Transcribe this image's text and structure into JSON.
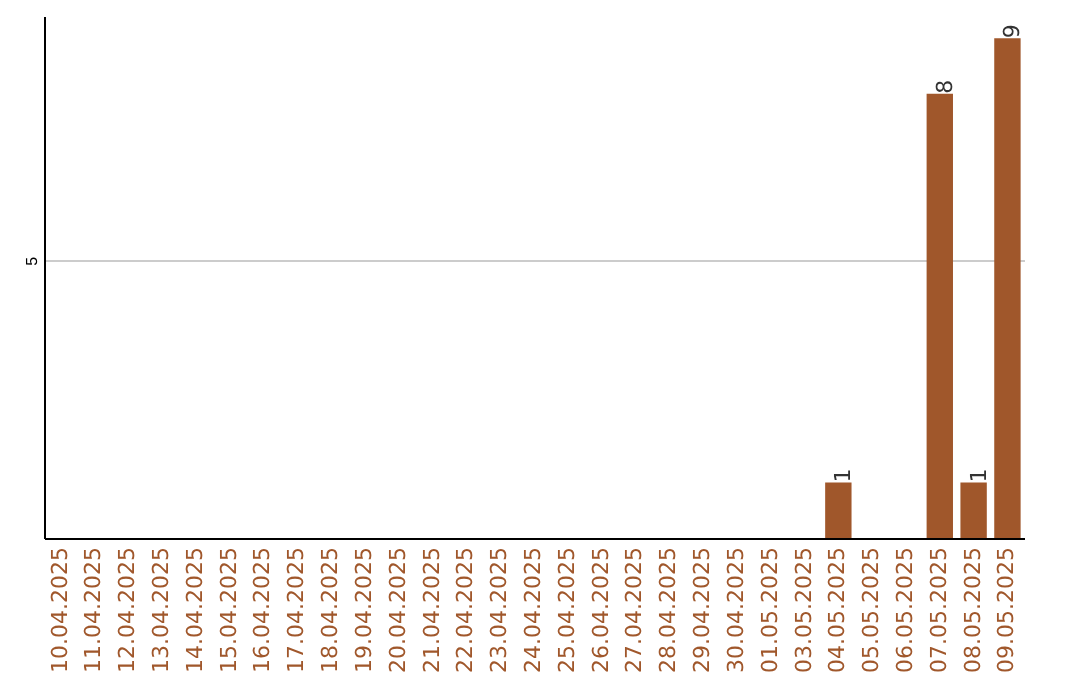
{
  "chart_data": {
    "type": "bar",
    "categories": [
      "10.04.2025",
      "11.04.2025",
      "12.04.2025",
      "13.04.2025",
      "14.04.2025",
      "15.04.2025",
      "16.04.2025",
      "17.04.2025",
      "18.04.2025",
      "19.04.2025",
      "20.04.2025",
      "21.04.2025",
      "22.04.2025",
      "23.04.2025",
      "24.04.2025",
      "25.04.2025",
      "26.04.2025",
      "27.04.2025",
      "28.04.2025",
      "29.04.2025",
      "30.04.2025",
      "01.05.2025",
      "03.05.2025",
      "04.05.2025",
      "05.05.2025",
      "06.05.2025",
      "07.05.2025",
      "08.05.2025",
      "09.05.2025"
    ],
    "values": [
      null,
      null,
      null,
      null,
      null,
      null,
      null,
      null,
      null,
      null,
      null,
      null,
      null,
      null,
      null,
      null,
      null,
      null,
      null,
      null,
      null,
      null,
      null,
      1,
      null,
      null,
      8,
      1,
      9
    ],
    "data_labels": true,
    "color": "#a0572b",
    "ylim": [
      0,
      9.4
    ],
    "yticks": [
      5
    ],
    "grid": "y"
  }
}
